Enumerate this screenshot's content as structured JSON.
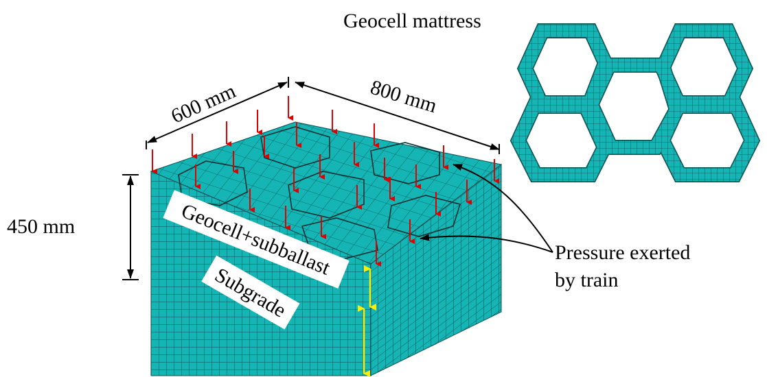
{
  "title": "Geocell mattress",
  "dimensions": {
    "width": "600 mm",
    "length": "800 mm",
    "height": "450 mm"
  },
  "layers": [
    "Geocell+subballast",
    "Subgrade"
  ],
  "annotation": [
    "Pressure exerted",
    "by train"
  ]
}
